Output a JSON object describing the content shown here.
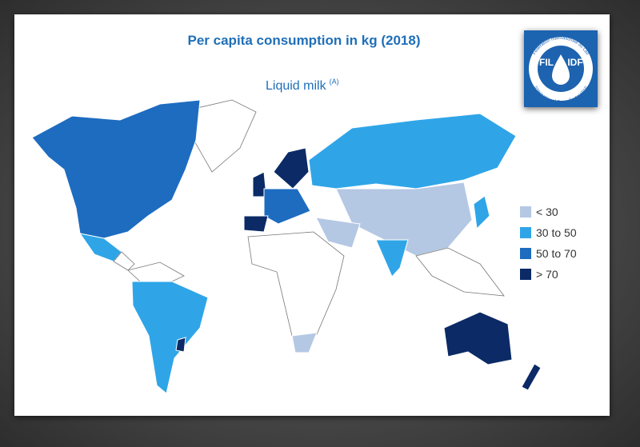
{
  "header": {
    "title": "Per capita consumption in kg (2018)",
    "subtitle": "Liquid milk",
    "subtitle_note": "(A)"
  },
  "legend": {
    "items": [
      {
        "label": "< 30",
        "color": "#b4c8e4"
      },
      {
        "label": "30 to 50",
        "color": "#2fa5e8"
      },
      {
        "label": "50 to 70",
        "color": "#1d6cc0"
      },
      {
        "label": "> 70",
        "color": "#0b2a66"
      }
    ]
  },
  "logo": {
    "left": "FIL",
    "right": "IDF",
    "ring_top": "Fédération Internationale du Lait",
    "ring_bottom": "International Dairy Federation"
  }
}
